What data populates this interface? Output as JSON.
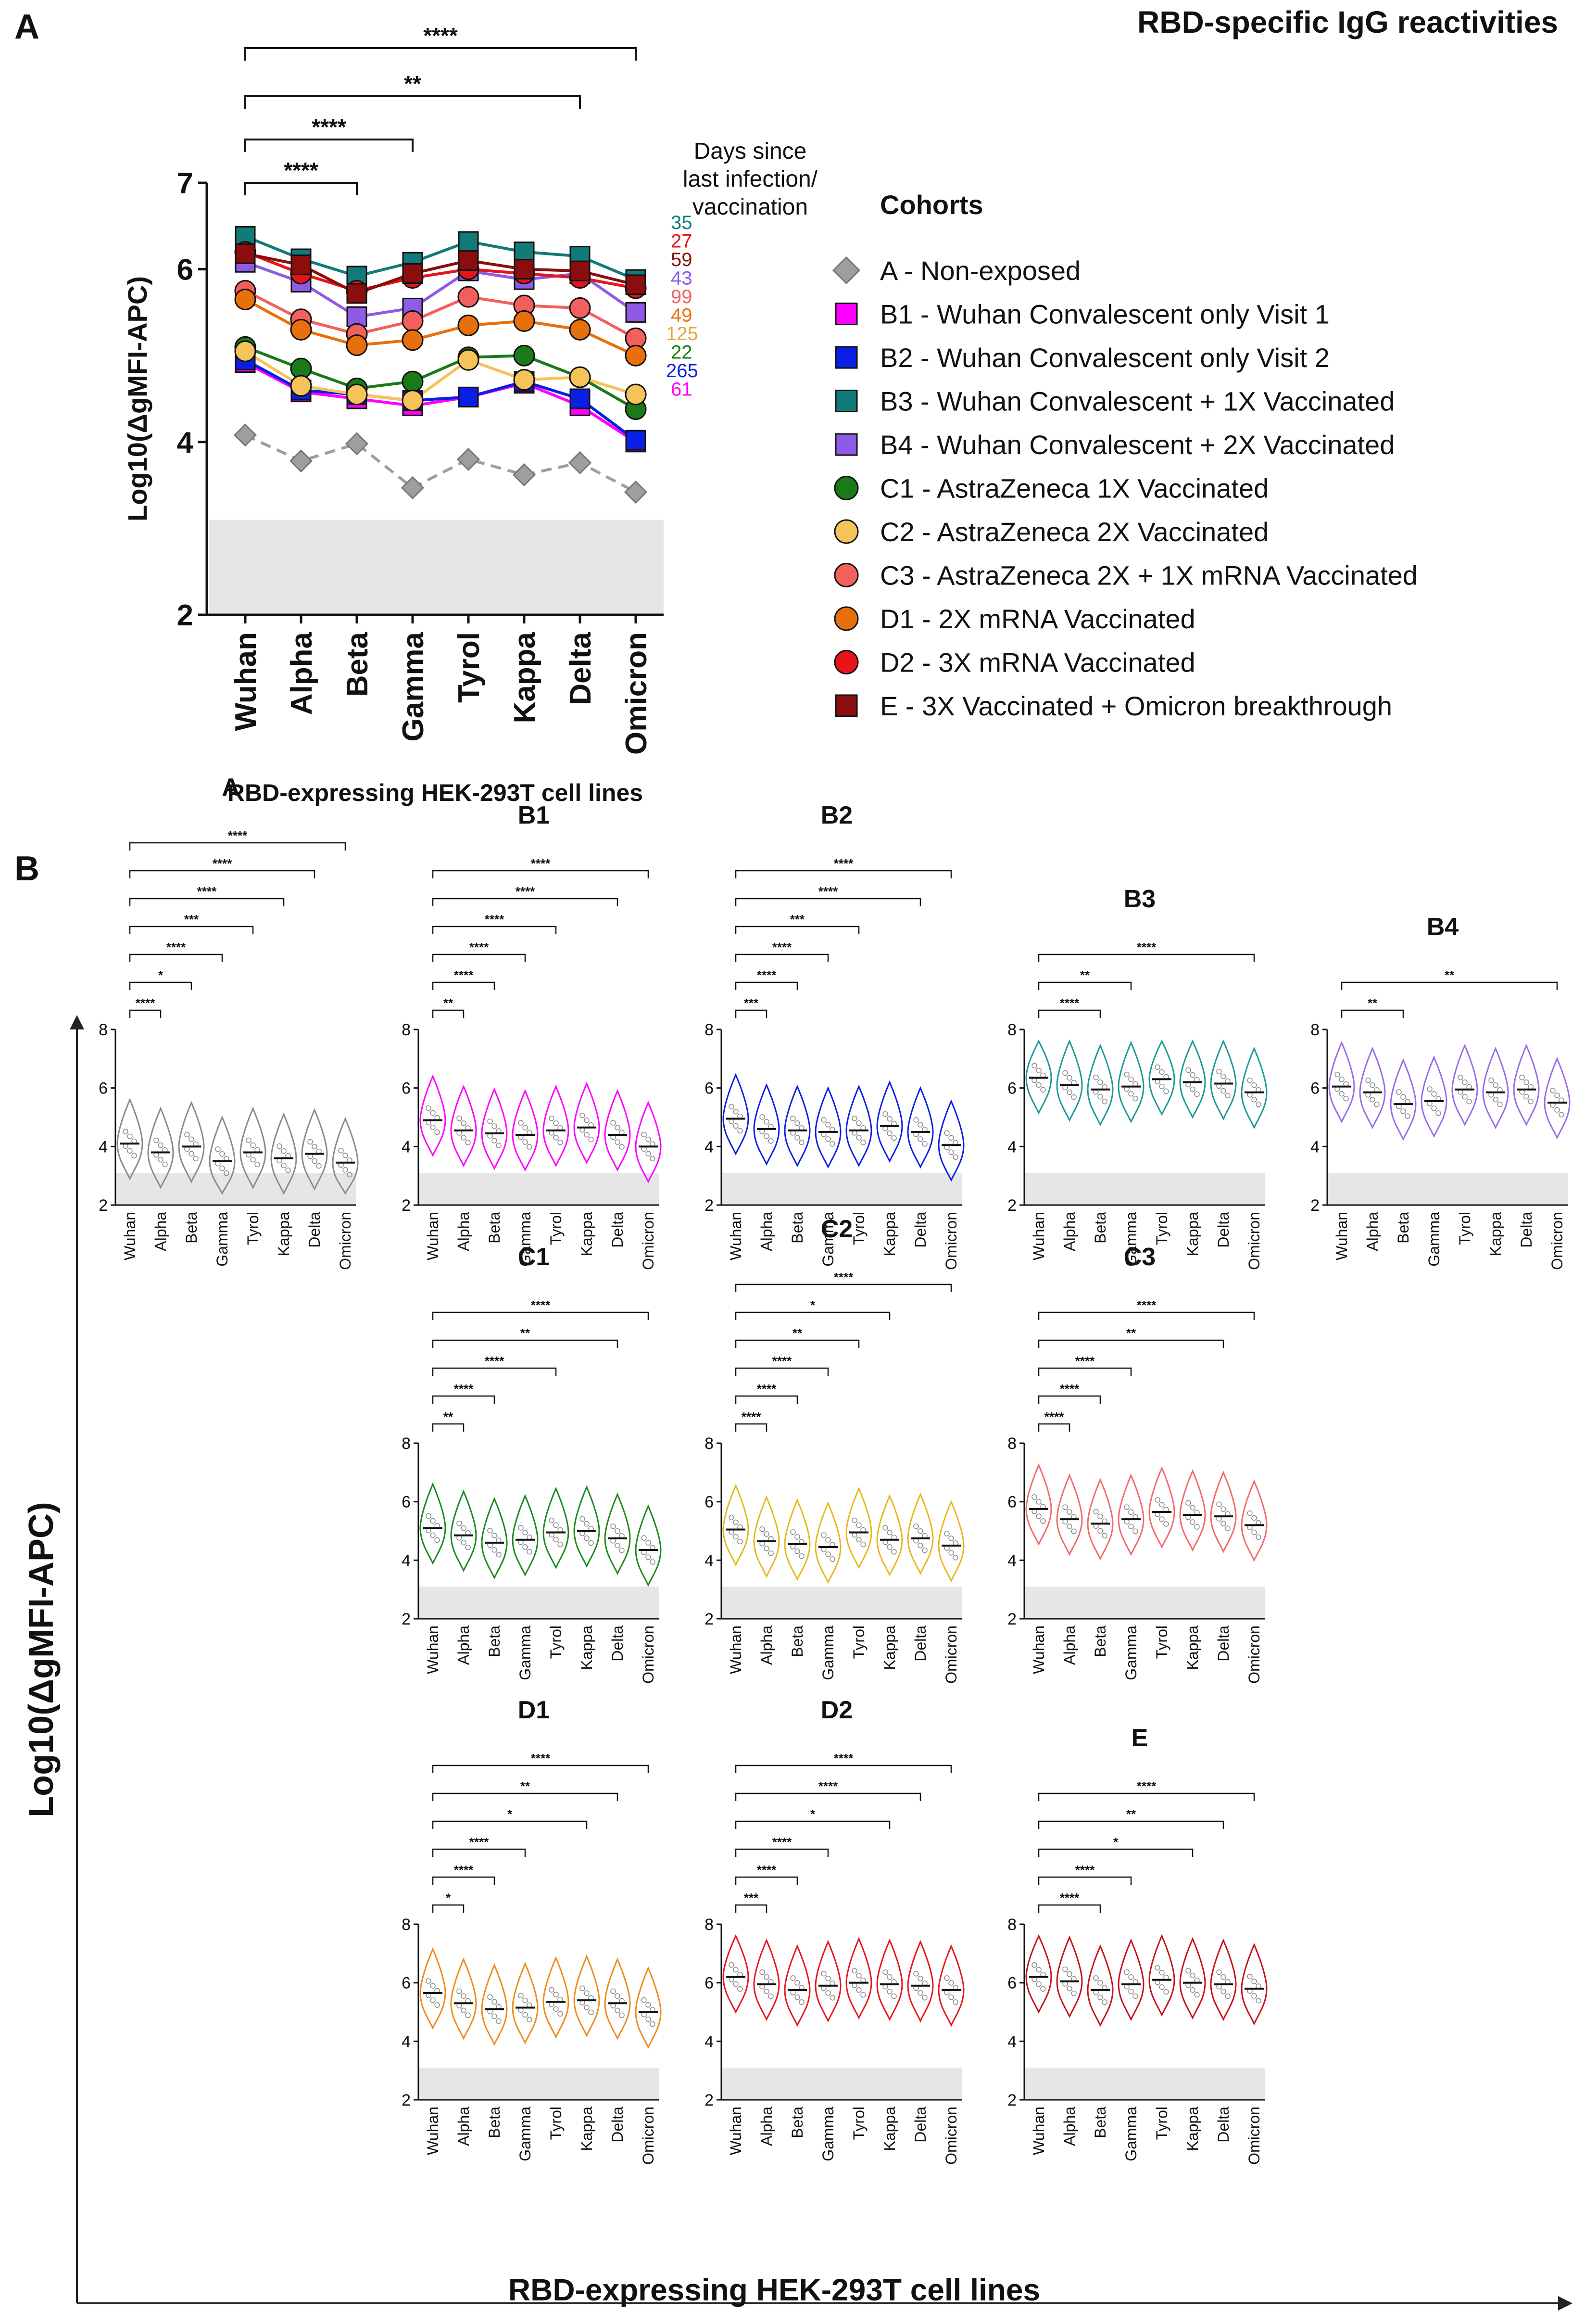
{
  "figure_title": "RBD-specific IgG reactivities",
  "panel_labels": {
    "a": "A",
    "b": "B"
  },
  "chart_data": [
    {
      "id": "A",
      "type": "line",
      "title": "RBD-specific IgG reactivities",
      "xlabel": "RBD-expressing HEK-293T cell lines",
      "ylabel": "Log10(ΔgMFI-APC)",
      "ylim": [
        2,
        7
      ],
      "yticks": [
        "2",
        "4",
        "6",
        "7"
      ],
      "categories": [
        "Wuhan",
        "Alpha",
        "Beta",
        "Gamma",
        "Tyrol",
        "Kappa",
        "Delta",
        "Omicron"
      ],
      "shaded_below": 3.1,
      "days_label": "Days since last infection/ vaccination",
      "days_lines": [
        "Days since",
        "last infection/",
        "vaccination"
      ],
      "legend_title": "Cohorts",
      "brackets": [
        {
          "from": 0,
          "to": 7,
          "label": "****"
        },
        {
          "from": 0,
          "to": 6,
          "label": "**"
        },
        {
          "from": 0,
          "to": 3,
          "label": "****"
        },
        {
          "from": 0,
          "to": 2,
          "label": "****"
        }
      ],
      "series": [
        {
          "key": "A",
          "name": "A - Non-exposed",
          "color": "#9e9e9e",
          "marker": "diamond",
          "dashed": true,
          "values": [
            4.08,
            3.78,
            3.98,
            3.47,
            3.8,
            3.62,
            3.76,
            3.42
          ],
          "days": ""
        },
        {
          "key": "B1",
          "name": "B1 - Wuhan Convalescent only Visit 1",
          "color": "#ff00ff",
          "marker": "square",
          "values": [
            4.92,
            4.58,
            4.5,
            4.42,
            4.52,
            4.68,
            4.42,
            4.0
          ],
          "days": "61"
        },
        {
          "key": "B2",
          "name": "B2 - Wuhan Convalescent only Visit 2",
          "color": "#0a1fe6",
          "marker": "square",
          "values": [
            4.95,
            4.6,
            4.55,
            4.48,
            4.52,
            4.7,
            4.5,
            4.02
          ],
          "days": "265"
        },
        {
          "key": "B3",
          "name": "B3 - Wuhan Convalescent + 1X Vaccinated",
          "color": "#127a78",
          "marker": "square",
          "values": [
            6.38,
            6.12,
            5.92,
            6.08,
            6.32,
            6.2,
            6.15,
            5.88
          ],
          "days": "35"
        },
        {
          "key": "B4",
          "name": "B4 - Wuhan Convalescent + 2X Vaccinated",
          "color": "#8e5be6",
          "marker": "square",
          "values": [
            6.08,
            5.85,
            5.45,
            5.55,
            5.98,
            5.88,
            5.95,
            5.5
          ],
          "days": "43"
        },
        {
          "key": "C1",
          "name": "C1 - AstraZeneca 1X Vaccinated",
          "color": "#1a7a1a",
          "marker": "circle",
          "values": [
            5.1,
            4.85,
            4.62,
            4.7,
            4.98,
            5.0,
            4.75,
            4.38
          ],
          "days": "22"
        },
        {
          "key": "C2",
          "name": "C2 - AstraZeneca 2X Vaccinated",
          "color": "#f6c35a",
          "marker": "circle",
          "values": [
            5.05,
            4.65,
            4.55,
            4.48,
            4.95,
            4.72,
            4.75,
            4.55
          ],
          "days": "125"
        },
        {
          "key": "C3",
          "name": "C3 - AstraZeneca 2X + 1X mRNA Vaccinated",
          "color": "#f25f5c",
          "marker": "circle",
          "values": [
            5.75,
            5.42,
            5.25,
            5.4,
            5.68,
            5.58,
            5.55,
            5.2
          ],
          "days": "99"
        },
        {
          "key": "D1",
          "name": "D1 - 2X mRNA Vaccinated",
          "color": "#e8700c",
          "marker": "circle",
          "values": [
            5.65,
            5.3,
            5.12,
            5.18,
            5.35,
            5.4,
            5.3,
            5.0
          ],
          "days": "49"
        },
        {
          "key": "D2",
          "name": "D2 - 3X mRNA Vaccinated",
          "color": "#e8141a",
          "marker": "circle",
          "values": [
            6.2,
            5.95,
            5.75,
            5.9,
            6.0,
            5.95,
            5.9,
            5.78
          ],
          "days": "27"
        },
        {
          "key": "E",
          "name": "E - 3X Vaccinated + Omicron breakthrough",
          "color": "#8b0d0d",
          "marker": "square",
          "values": [
            6.18,
            6.05,
            5.72,
            5.95,
            6.1,
            6.0,
            5.98,
            5.82
          ],
          "days": "59"
        }
      ],
      "days_order": [
        {
          "text": "35",
          "color": "#127a78"
        },
        {
          "text": "27",
          "color": "#e8141a"
        },
        {
          "text": "59",
          "color": "#8b0d0d"
        },
        {
          "text": "43",
          "color": "#8e5be6"
        },
        {
          "text": "99",
          "color": "#f25f5c"
        },
        {
          "text": "49",
          "color": "#e8700c"
        },
        {
          "text": "125",
          "color": "#e0a83a"
        },
        {
          "text": "22",
          "color": "#1a7a1a"
        },
        {
          "text": "265",
          "color": "#0a1fe6"
        },
        {
          "text": "61",
          "color": "#ff00ff"
        }
      ]
    },
    {
      "id": "B",
      "type": "violin",
      "ylabel": "Log10(ΔgMFI-APC)",
      "xlabel": "RBD-expressing HEK-293T cell lines",
      "ylim": [
        2,
        8
      ],
      "yticks": [
        "2",
        "4",
        "6",
        "8"
      ],
      "shaded_below": 3.1,
      "categories": [
        "Wuhan",
        "Alpha",
        "Beta",
        "Gamma",
        "Tyrol",
        "Kappa",
        "Delta",
        "Omicron"
      ],
      "panels": [
        {
          "title": "A",
          "color": "#8a8a8a",
          "medians": [
            4.1,
            3.8,
            4.0,
            3.5,
            3.8,
            3.6,
            3.75,
            3.45
          ],
          "brackets": [
            {
              "to": 1,
              "label": "****"
            },
            {
              "to": 2,
              "label": "*"
            },
            {
              "to": 3,
              "label": "****"
            },
            {
              "to": 4,
              "label": "***"
            },
            {
              "to": 5,
              "label": "****"
            },
            {
              "to": 6,
              "label": "****"
            },
            {
              "to": 7,
              "label": "****"
            }
          ]
        },
        {
          "title": "B1",
          "color": "#ff00ff",
          "medians": [
            4.9,
            4.55,
            4.45,
            4.4,
            4.55,
            4.65,
            4.4,
            4.0
          ],
          "brackets": [
            {
              "to": 1,
              "label": "**"
            },
            {
              "to": 2,
              "label": "****"
            },
            {
              "to": 3,
              "label": "****"
            },
            {
              "to": 4,
              "label": "****"
            },
            {
              "to": 6,
              "label": "****"
            },
            {
              "to": 7,
              "label": "****"
            }
          ]
        },
        {
          "title": "B2",
          "color": "#0a1fe6",
          "medians": [
            4.95,
            4.6,
            4.55,
            4.5,
            4.55,
            4.7,
            4.5,
            4.05
          ],
          "brackets": [
            {
              "to": 1,
              "label": "***"
            },
            {
              "to": 2,
              "label": "****"
            },
            {
              "to": 3,
              "label": "****"
            },
            {
              "to": 4,
              "label": "***"
            },
            {
              "to": 6,
              "label": "****"
            },
            {
              "to": 7,
              "label": "****"
            }
          ]
        },
        {
          "title": "B3",
          "color": "#1a9a96",
          "medians": [
            6.35,
            6.1,
            5.95,
            6.05,
            6.3,
            6.2,
            6.15,
            5.85
          ],
          "brackets": [
            {
              "to": 2,
              "label": "****"
            },
            {
              "to": 3,
              "label": "**"
            },
            {
              "to": 7,
              "label": "****"
            }
          ]
        },
        {
          "title": "B4",
          "color": "#9b6be8",
          "medians": [
            6.05,
            5.85,
            5.45,
            5.55,
            5.95,
            5.85,
            5.95,
            5.5
          ],
          "brackets": [
            {
              "to": 2,
              "label": "**"
            },
            {
              "to": 7,
              "label": "**"
            }
          ]
        },
        {
          "title": "C1",
          "color": "#1a8a1a",
          "medians": [
            5.1,
            4.85,
            4.6,
            4.7,
            4.95,
            5.0,
            4.75,
            4.35
          ],
          "brackets": [
            {
              "to": 1,
              "label": "**"
            },
            {
              "to": 2,
              "label": "****"
            },
            {
              "to": 4,
              "label": "****"
            },
            {
              "to": 6,
              "label": "**"
            },
            {
              "to": 7,
              "label": "****"
            }
          ]
        },
        {
          "title": "C2",
          "color": "#e8b81a",
          "medians": [
            5.05,
            4.65,
            4.55,
            4.45,
            4.95,
            4.7,
            4.75,
            4.5
          ],
          "brackets": [
            {
              "to": 1,
              "label": "****"
            },
            {
              "to": 2,
              "label": "****"
            },
            {
              "to": 3,
              "label": "****"
            },
            {
              "to": 4,
              "label": "**"
            },
            {
              "to": 5,
              "label": "*"
            },
            {
              "to": 7,
              "label": "****"
            }
          ]
        },
        {
          "title": "C3",
          "color": "#f26a6a",
          "medians": [
            5.75,
            5.4,
            5.25,
            5.4,
            5.65,
            5.55,
            5.5,
            5.2
          ],
          "brackets": [
            {
              "to": 1,
              "label": "****"
            },
            {
              "to": 2,
              "label": "****"
            },
            {
              "to": 3,
              "label": "****"
            },
            {
              "to": 6,
              "label": "**"
            },
            {
              "to": 7,
              "label": "****"
            }
          ]
        },
        {
          "title": "D1",
          "color": "#f08a1a",
          "medians": [
            5.65,
            5.3,
            5.1,
            5.15,
            5.35,
            5.4,
            5.3,
            5.0
          ],
          "brackets": [
            {
              "to": 1,
              "label": "*"
            },
            {
              "to": 2,
              "label": "****"
            },
            {
              "to": 3,
              "label": "****"
            },
            {
              "to": 5,
              "label": "*"
            },
            {
              "to": 6,
              "label": "**"
            },
            {
              "to": 7,
              "label": "****"
            }
          ]
        },
        {
          "title": "D2",
          "color": "#e8141a",
          "medians": [
            6.2,
            5.95,
            5.75,
            5.9,
            6.0,
            5.95,
            5.9,
            5.75
          ],
          "brackets": [
            {
              "to": 1,
              "label": "***"
            },
            {
              "to": 2,
              "label": "****"
            },
            {
              "to": 3,
              "label": "****"
            },
            {
              "to": 5,
              "label": "*"
            },
            {
              "to": 6,
              "label": "****"
            },
            {
              "to": 7,
              "label": "****"
            }
          ]
        },
        {
          "title": "E",
          "color": "#c8101a",
          "medians": [
            6.2,
            6.05,
            5.75,
            5.95,
            6.1,
            6.0,
            5.95,
            5.8
          ],
          "brackets": [
            {
              "to": 2,
              "label": "****"
            },
            {
              "to": 3,
              "label": "****"
            },
            {
              "to": 5,
              "label": "*"
            },
            {
              "to": 6,
              "label": "**"
            },
            {
              "to": 7,
              "label": "****"
            }
          ]
        }
      ]
    }
  ]
}
